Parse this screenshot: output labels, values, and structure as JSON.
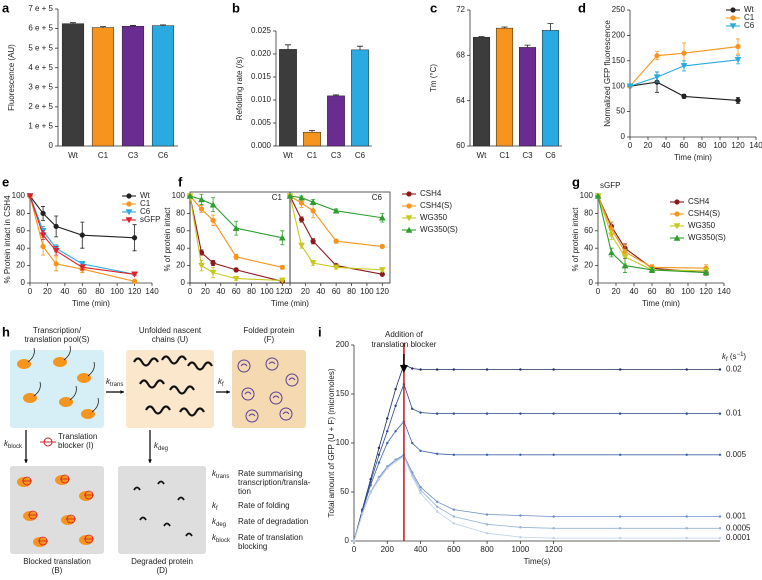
{
  "chart_data": [
    {
      "type": "bar",
      "panel": "a",
      "y_label": "Fluorescence (AU)",
      "categories": [
        "Wt",
        "C1",
        "C3",
        "C6"
      ],
      "values": [
        625000,
        605000,
        612000,
        615000
      ],
      "errors": [
        5000,
        5000,
        4000,
        4000
      ],
      "colors": [
        "#3c3c3c",
        "#f7941d",
        "#6a2c91",
        "#29abe2"
      ],
      "ylim": [
        0,
        700000
      ],
      "yticks": [
        0,
        {
          "value": 100000,
          "label": "1 e + 5"
        },
        {
          "value": 200000,
          "label": "2 e + 5"
        },
        {
          "value": 300000,
          "label": "3 e + 5"
        },
        {
          "value": 400000,
          "label": "4 e + 5"
        },
        {
          "value": 500000,
          "label": "5 e + 5"
        },
        {
          "value": 600000,
          "label": "6 e + 5"
        },
        {
          "value": 700000,
          "label": "7 e + 5"
        }
      ]
    },
    {
      "type": "bar",
      "panel": "b",
      "y_label": "Refolding rate (/s)",
      "categories": [
        "Wt",
        "C1",
        "C3",
        "C6"
      ],
      "values": [
        0.021,
        0.003,
        0.0109,
        0.0209
      ],
      "errors": [
        0.001,
        0.0004,
        0.0002,
        0.0008
      ],
      "colors": [
        "#3c3c3c",
        "#f7941d",
        "#6a2c91",
        "#29abe2"
      ],
      "ylim": [
        0,
        0.025
      ],
      "yticks": [
        {
          "value": 0,
          "label": "0.000"
        },
        {
          "value": 0.005,
          "label": "0.005"
        },
        {
          "value": 0.01,
          "label": "0.010"
        },
        {
          "value": 0.015,
          "label": "0.015"
        },
        {
          "value": 0.02,
          "label": "0.020"
        },
        {
          "value": 0.025,
          "label": "0.025"
        }
      ]
    },
    {
      "type": "bar",
      "panel": "c",
      "y_label": "Tm (°C)",
      "categories": [
        "Wt",
        "C1",
        "C3",
        "C6"
      ],
      "values": [
        69.6,
        70.4,
        68.7,
        70.2
      ],
      "errors": [
        0.05,
        0.1,
        0.2,
        0.6
      ],
      "colors": [
        "#3c3c3c",
        "#f7941d",
        "#6a2c91",
        "#29abe2"
      ],
      "ylim": [
        60,
        72
      ],
      "yticks": [
        60,
        64,
        68,
        72
      ]
    },
    {
      "type": "line",
      "panel": "d",
      "y_label": "Normalized GFP fluorescence",
      "x_label": "Time (min)",
      "legend": "upper right",
      "x": [
        0,
        30,
        60,
        120
      ],
      "xlim": [
        0,
        140
      ],
      "xticks": [
        0,
        20,
        40,
        60,
        80,
        100,
        120,
        140
      ],
      "ylim": [
        0,
        250
      ],
      "yticks": [
        0,
        50,
        100,
        150,
        200,
        250
      ],
      "series": [
        {
          "name": "Wt",
          "color": "#222222",
          "marker": "circle",
          "values": [
            100,
            108,
            80,
            72
          ],
          "errors": [
            0,
            20,
            4,
            6
          ]
        },
        {
          "name": "C1",
          "color": "#f7941d",
          "marker": "circle",
          "values": [
            100,
            160,
            165,
            178
          ],
          "errors": [
            0,
            8,
            20,
            15
          ]
        },
        {
          "name": "C6",
          "color": "#29abe2",
          "marker": "tri-down",
          "values": [
            100,
            118,
            140,
            152
          ],
          "errors": [
            0,
            10,
            10,
            8
          ]
        }
      ]
    },
    {
      "type": "line",
      "panel": "e",
      "y_label": "% Protein intact in CSH4",
      "x_label": "Time (min)",
      "legend": "upper right",
      "x": [
        0,
        15,
        30,
        60,
        120
      ],
      "xlim": [
        0,
        140
      ],
      "xticks": [
        0,
        20,
        40,
        60,
        80,
        100,
        120,
        140
      ],
      "ylim": [
        0,
        100
      ],
      "yticks": [
        0,
        20,
        40,
        60,
        80,
        100
      ],
      "series": [
        {
          "name": "Wt",
          "color": "#222222",
          "marker": "circle",
          "values": [
            100,
            80,
            65,
            55,
            52
          ],
          "errors": [
            0,
            8,
            12,
            15,
            15
          ]
        },
        {
          "name": "C1",
          "color": "#f7941d",
          "marker": "circle",
          "values": [
            100,
            42,
            22,
            16,
            2
          ],
          "errors": [
            0,
            10,
            8,
            4,
            1
          ]
        },
        {
          "name": "C6",
          "color": "#29abe2",
          "marker": "tri-down",
          "values": [
            100,
            60,
            40,
            22,
            10
          ],
          "errors": [
            0,
            5,
            4,
            2,
            1
          ]
        },
        {
          "name": "sGFP",
          "color": "#e0202a",
          "marker": "tri-down",
          "values": [
            100,
            55,
            37,
            18,
            10
          ],
          "errors": [
            0,
            5,
            5,
            3,
            1
          ]
        }
      ]
    },
    {
      "type": "line",
      "panel": "f",
      "y_label": "% of protein intact",
      "x_label": "Time (min)",
      "legend": "right",
      "x": [
        0,
        15,
        30,
        60,
        120
      ],
      "xlim": [
        0,
        130
      ],
      "xticks": [
        0,
        20,
        40,
        60,
        80,
        100,
        120
      ],
      "ylim": [
        0,
        100
      ],
      "yticks": [
        0,
        20,
        40,
        60,
        80,
        100
      ],
      "series": [
        {
          "name": "CSH4",
          "color": "#8b1a1a",
          "marker": "circle"
        },
        {
          "name": "CSH4(S)",
          "color": "#f7941d",
          "marker": "circle"
        },
        {
          "name": "WG350",
          "color": "#c8c820",
          "marker": "tri-down"
        },
        {
          "name": "WG350(S)",
          "color": "#2e9e2e",
          "marker": "tri-up"
        }
      ],
      "subplots": [
        {
          "label": "C1",
          "series": [
            {
              "values": [
                100,
                35,
                23,
                15,
                2
              ],
              "errors": [
                0,
                3,
                3,
                2,
                1
              ]
            },
            {
              "values": [
                100,
                85,
                72,
                30,
                18
              ],
              "errors": [
                0,
                4,
                6,
                3,
                2
              ]
            },
            {
              "values": [
                100,
                20,
                12,
                5,
                3
              ],
              "errors": [
                0,
                6,
                6,
                2,
                1
              ]
            },
            {
              "values": [
                100,
                96,
                90,
                63,
                52
              ],
              "errors": [
                0,
                6,
                8,
                8,
                8
              ]
            }
          ]
        },
        {
          "label": "C6",
          "series": [
            {
              "values": [
                100,
                73,
                48,
                20,
                10
              ],
              "errors": [
                0,
                3,
                3,
                2,
                1
              ]
            },
            {
              "values": [
                100,
                92,
                83,
                48,
                42
              ],
              "errors": [
                0,
                5,
                8,
                2,
                2
              ]
            },
            {
              "values": [
                100,
                43,
                23,
                18,
                15
              ],
              "errors": [
                0,
                3,
                3,
                2,
                2
              ]
            },
            {
              "values": [
                100,
                98,
                93,
                83,
                75
              ],
              "errors": [
                0,
                2,
                3,
                2,
                5
              ]
            }
          ]
        }
      ]
    },
    {
      "type": "line",
      "panel": "g",
      "title": "sGFP",
      "y_label": "% of protein intact",
      "x_label": "Time (min)",
      "legend": "upper right",
      "x": [
        0,
        15,
        30,
        60,
        120
      ],
      "xlim": [
        0,
        140
      ],
      "xticks": [
        0,
        20,
        40,
        60,
        80,
        100,
        120,
        140
      ],
      "ylim": [
        0,
        100
      ],
      "yticks": [
        0,
        20,
        40,
        60,
        80,
        100
      ],
      "series": [
        {
          "name": "CSH4",
          "color": "#8b1a1a",
          "marker": "circle",
          "values": [
            100,
            65,
            40,
            17,
            12
          ],
          "errors": [
            0,
            5,
            5,
            3,
            3
          ]
        },
        {
          "name": "CSH4(S)",
          "color": "#f7941d",
          "marker": "circle",
          "values": [
            100,
            62,
            36,
            18,
            17
          ],
          "errors": [
            0,
            8,
            8,
            3,
            4
          ]
        },
        {
          "name": "WG350",
          "color": "#c8c820",
          "marker": "tri-down",
          "values": [
            100,
            55,
            30,
            15,
            14
          ],
          "errors": [
            0,
            5,
            8,
            3,
            3
          ]
        },
        {
          "name": "WG350(S)",
          "color": "#2e9e2e",
          "marker": "tri-up",
          "values": [
            100,
            35,
            20,
            15,
            12
          ],
          "errors": [
            0,
            5,
            8,
            3,
            2
          ]
        }
      ]
    },
    {
      "type": "line",
      "panel": "i",
      "y_label": "Total amount of GFP (U + F) (micromoles)",
      "x_label": "Time(s)",
      "legend": "curve end",
      "legend_title": {
        "k": "k",
        "sub": "f",
        "open": " (s",
        "sup": "−1",
        "close": ")"
      },
      "annotation": {
        "text": [
          "Addition of",
          "translation blocker"
        ],
        "x": 300,
        "color": "#d0202a"
      },
      "x": [
        0,
        50,
        100,
        150,
        200,
        250,
        300,
        350,
        400,
        500,
        600,
        800,
        1000,
        1200,
        1600,
        2000,
        2200
      ],
      "xlim": [
        0,
        2200
      ],
      "xticks": [
        0,
        200,
        400,
        600,
        800,
        1000,
        1200
      ],
      "ylim": [
        0,
        200
      ],
      "yticks": [
        0,
        50,
        100,
        150,
        200
      ],
      "series": [
        {
          "name": "0.02",
          "color": "#1f2d5c",
          "marker": "dot",
          "values": [
            0,
            32,
            63,
            95,
            125,
            155,
            180,
            176,
            175,
            175,
            175,
            175,
            175,
            175,
            175,
            175,
            175
          ]
        },
        {
          "name": "0.01",
          "color": "#2d4a8a",
          "marker": "dot",
          "values": [
            0,
            31,
            60,
            88,
            112,
            138,
            160,
            135,
            131,
            130,
            130,
            130,
            130,
            130,
            130,
            130,
            130
          ]
        },
        {
          "name": "0.005",
          "color": "#3e64a8",
          "marker": "dot",
          "values": [
            0,
            30,
            57,
            80,
            100,
            112,
            122,
            100,
            92,
            89,
            88,
            88,
            88,
            88,
            88,
            88,
            88
          ]
        },
        {
          "name": "0.001",
          "color": "#6b8ec4",
          "marker": "dot",
          "values": [
            0,
            28,
            50,
            65,
            76,
            83,
            88,
            70,
            55,
            40,
            32,
            27,
            26,
            25,
            25,
            25,
            25
          ]
        },
        {
          "name": "0.0005",
          "color": "#96b2d8",
          "marker": "dot",
          "values": [
            0,
            28,
            50,
            64,
            75,
            82,
            87,
            68,
            52,
            35,
            25,
            17,
            14,
            13,
            13,
            13,
            13
          ]
        },
        {
          "name": "0.0001",
          "color": "#bcd0e8",
          "marker": "dot",
          "values": [
            0,
            28,
            49,
            63,
            74,
            81,
            86,
            66,
            49,
            30,
            18,
            8,
            4,
            3,
            3,
            3,
            3
          ]
        }
      ]
    }
  ],
  "diagram": {
    "panel": "h",
    "nodes": [
      {
        "label": [
          "Transcription/",
          "translation pool(S)"
        ]
      },
      {
        "label": [
          "Unfolded nascent",
          "chains (U)"
        ]
      },
      {
        "label": [
          "Folded protein",
          "(F)"
        ]
      },
      {
        "label": [
          "Blocked translation",
          "(B)"
        ]
      },
      {
        "label": [
          "Degraded protein",
          "(D)"
        ]
      }
    ],
    "rates": [
      {
        "k": "k",
        "sub": "trans"
      },
      {
        "k": "k",
        "sub": "f"
      },
      {
        "k": "k",
        "sub": "block"
      },
      {
        "k": "k",
        "sub": "deg"
      }
    ],
    "blocker": [
      "Translation",
      "blocker (I)"
    ],
    "key": [
      {
        "text": [
          "Rate summarising",
          "transcription/transla-",
          "tion"
        ]
      },
      {
        "text": [
          "Rate of folding"
        ]
      },
      {
        "text": [
          "Rate of degradation"
        ]
      },
      {
        "text": [
          "Rate of translation",
          "blocking"
        ]
      }
    ]
  }
}
